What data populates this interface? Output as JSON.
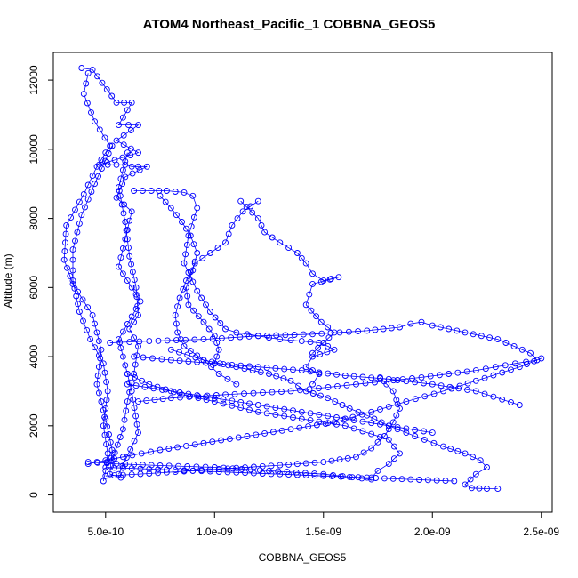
{
  "chart_data": {
    "type": "scatter",
    "title": "ATOM4 Northeast_Pacific_1 COBBNA_GEOS5",
    "xlabel": "COBBNA_GEOS5",
    "ylabel": "Altitude (m)",
    "xlim": [
      2.6e-10,
      2.55e-09
    ],
    "ylim": [
      -500,
      12800
    ],
    "x_ticks": [
      5e-10,
      1e-09,
      1.5e-09,
      2e-09,
      2.5e-09
    ],
    "x_tick_labels": [
      "5.0e-10",
      "1.0e-09",
      "1.5e-09",
      "2.0e-09",
      "2.5e-09"
    ],
    "y_ticks": [
      0,
      2000,
      4000,
      6000,
      8000,
      10000,
      12000
    ],
    "y_tick_labels": [
      "0",
      "2000",
      "4000",
      "6000",
      "8000",
      "10000",
      "12000"
    ],
    "marker": "open-circle",
    "color": "#0000ff",
    "series": [
      {
        "x": [
          3.9e-10,
          4.4e-10,
          5.5e-10,
          6.2e-10,
          5.6e-10,
          6.5e-10,
          5.5e-10,
          6.5e-10,
          4.7e-10,
          5.9e-10,
          6.2e-10,
          6.5e-10,
          6.9e-10,
          5.9e-10,
          5.5e-10,
          6.2e-10,
          5.9e-10,
          5.6e-10,
          6.6e-10,
          5.6e-10,
          6.2e-10,
          6.5e-10,
          5.6e-10
        ],
        "y": [
          12350,
          12300,
          11350,
          11350,
          10700,
          10700,
          10250,
          9900,
          9550,
          9550,
          9500,
          9500,
          9500,
          9200,
          8600,
          8200,
          7400,
          6600,
          5600,
          4500,
          3000,
          1800,
          600
        ]
      },
      {
        "x": [
          4.2e-10,
          4e-10,
          4.5e-10,
          5.2e-10,
          4.6e-10,
          4e-10,
          3.2e-10,
          3.1e-10,
          3.5e-10,
          4.4e-10,
          4.8e-10,
          4.6e-10,
          5e-10,
          5.3e-10,
          5.2e-10,
          5.7e-10
        ],
        "y": [
          12200,
          11600,
          10800,
          10100,
          9500,
          8700,
          7800,
          6800,
          6100,
          5200,
          4200,
          3200,
          2200,
          1300,
          600,
          500
        ]
      },
      {
        "x": [
          5.3e-10,
          4.5e-10,
          3.9e-10,
          3.5e-10,
          3.5e-10,
          3.8e-10,
          4.3e-10,
          4.9e-10,
          5.1e-10,
          4.9e-10,
          5.1e-10,
          5e-10,
          4.9e-10
        ],
        "y": [
          10100,
          9000,
          8100,
          7100,
          6200,
          5300,
          4500,
          3800,
          3000,
          2000,
          1200,
          700,
          400
        ]
      },
      {
        "x": [
          6e-10,
          5.6e-10,
          5.9e-10,
          6.1e-10,
          6.4e-10,
          6.5e-10,
          6.1e-10,
          6.5e-10,
          6.3e-10,
          6e-10,
          5.8e-10,
          5.3e-10
        ],
        "y": [
          9900,
          8900,
          7900,
          6900,
          6000,
          5200,
          4800,
          4300,
          3500,
          2700,
          1900,
          1000
        ]
      },
      {
        "x": [
          6.3e-10,
          7.1e-10,
          7.8e-10,
          8.6e-10,
          9e-10,
          9.2e-10,
          8.8e-10,
          8.6e-10,
          9.2e-10,
          9.8e-10,
          1.05e-09,
          1.1e-09,
          1.2e-09,
          1.3e-09,
          1.4e-09,
          1.48e-09,
          1.52e-09,
          1.55e-09,
          1.45e-09,
          1.42e-09,
          1.48e-09,
          1.45e-09
        ],
        "y": [
          8800,
          8800,
          8800,
          8750,
          8650,
          8300,
          7500,
          6700,
          5900,
          5300,
          4800,
          4700,
          4600,
          4500,
          4450,
          4400,
          4300,
          4200,
          4000,
          3700,
          3500,
          3200
        ]
      },
      {
        "x": [
          1.12e-09,
          1.2e-09,
          1.23e-09,
          1.3e-09,
          1.38e-09,
          1.42e-09,
          1.45e-09,
          1.5e-09,
          1.57e-09,
          1.45e-09,
          1.42e-09,
          1.49e-09,
          1.55e-09,
          1.5e-09,
          1.45e-09
        ],
        "y": [
          8500,
          8000,
          7600,
          7300,
          7000,
          6700,
          6400,
          6200,
          6300,
          6100,
          5500,
          5000,
          4700,
          4400,
          4100
        ]
      },
      {
        "x": [
          1.2e-09,
          1.13e-09,
          1.08e-09,
          1.05e-09,
          9.8e-10,
          9.1e-10,
          8.7e-10,
          8.4e-10,
          8.2e-10,
          8.3e-10,
          8.6e-10,
          9.5e-10,
          1.02e-09,
          1.1e-09
        ],
        "y": [
          8500,
          8200,
          7800,
          7300,
          7000,
          6700,
          6200,
          5700,
          5200,
          4700,
          4300,
          3900,
          3500,
          3200
        ]
      },
      {
        "x": [
          7.5e-10,
          8e-10,
          8.5e-10,
          8.9e-10,
          9.2e-10,
          9e-10,
          8.7e-10,
          8.8e-10,
          9.5e-10,
          1e-09,
          1.02e-09,
          1e-09
        ],
        "y": [
          8650,
          8300,
          7900,
          7500,
          7000,
          6500,
          6000,
          5500,
          5000,
          4600,
          4200,
          3800
        ]
      },
      {
        "x": [
          5.2e-10,
          7e-10,
          9.5e-10,
          1.2e-09,
          1.45e-09,
          1.7e-09,
          1.85e-09,
          1.9e-09,
          1.95e-09,
          2e-09,
          2.3e-09,
          2.45e-09,
          2.48e-09,
          2.38e-09,
          2.2e-09,
          1.95e-09,
          1.65e-09,
          1.35e-09,
          1.05e-09,
          8e-10,
          6.5e-10
        ],
        "y": [
          4400,
          4450,
          4500,
          4600,
          4650,
          4750,
          4850,
          4950,
          5000,
          4900,
          4500,
          4100,
          3900,
          3800,
          3600,
          3400,
          3200,
          3000,
          2900,
          2800,
          2700
        ]
      },
      {
        "x": [
          6.3e-10,
          8e-10,
          1e-09,
          1.2e-09,
          1.4e-09,
          1.6e-09,
          1.8e-09,
          2e-09,
          2.2e-09,
          2.4e-09
        ],
        "y": [
          4000,
          3900,
          3800,
          3700,
          3600,
          3450,
          3350,
          3200,
          3000,
          2600
        ]
      },
      {
        "x": [
          6e-10,
          8e-10,
          1e-09,
          1.2e-09,
          1.4e-09,
          1.6e-09,
          1.8e-09,
          2e-09
        ],
        "y": [
          3200,
          3000,
          2800,
          2600,
          2400,
          2200,
          2000,
          1800
        ]
      },
      {
        "x": [
          6e-10,
          7e-10,
          8.5e-10,
          1e-09,
          1.2e-09,
          1.4e-09,
          1.6e-09,
          1.8e-09,
          1.85e-09,
          1.8e-09,
          1.75e-09,
          1.72e-09
        ],
        "y": [
          3500,
          3200,
          2900,
          2700,
          2400,
          2200,
          2000,
          1600,
          1200,
          900,
          700,
          500
        ]
      },
      {
        "x": [
          8e-10,
          9.5e-10,
          1.1e-09,
          1.25e-09,
          1.35e-09,
          1.42e-09,
          1.52e-09,
          1.62e-09,
          1.7e-09,
          1.8e-09,
          1.92e-09,
          2.05e-09,
          2.15e-09,
          2.22e-09,
          2.25e-09,
          2.2e-09,
          2.15e-09,
          2.18e-09,
          2.25e-09,
          2.3e-09
        ],
        "y": [
          4200,
          3900,
          3700,
          3500,
          3300,
          3000,
          2800,
          2500,
          2300,
          2000,
          1700,
          1400,
          1200,
          1000,
          800,
          600,
          300,
          200,
          180,
          180
        ]
      },
      {
        "x": [
          4.2e-10,
          5.8e-10,
          7.5e-10,
          9.5e-10,
          1.15e-09,
          1.35e-09,
          1.55e-09,
          1.72e-09,
          1.88e-09,
          2.05e-09,
          2.2e-09,
          2.4e-09,
          2.5e-09
        ],
        "y": [
          900,
          1100,
          1300,
          1500,
          1700,
          1900,
          2100,
          2400,
          2700,
          3000,
          3300,
          3700,
          3950
        ]
      },
      {
        "x": [
          5e-10,
          7e-10,
          9e-10,
          1.1e-09,
          1.3e-09,
          1.5e-09,
          1.7e-09,
          1.9e-09,
          2.1e-09
        ],
        "y": [
          800,
          750,
          700,
          650,
          600,
          550,
          500,
          450,
          400
        ]
      },
      {
        "x": [
          5e-10,
          7e-10,
          9e-10,
          1.1e-09,
          1.3e-09,
          1.5e-09,
          1.65e-09,
          1.72e-09,
          1.78e-09,
          1.82e-09,
          1.85e-09,
          1.82e-09,
          1.76e-09
        ],
        "y": [
          550,
          620,
          700,
          780,
          860,
          950,
          1100,
          1350,
          1700,
          2100,
          2500,
          3000,
          3400
        ]
      },
      {
        "x": [
          4.2e-10,
          5.5e-10,
          7.5e-10,
          1e-09,
          1.25e-09,
          1.5e-09,
          1.72e-09
        ],
        "y": [
          950,
          900,
          850,
          800,
          700,
          600,
          450
        ]
      }
    ]
  }
}
